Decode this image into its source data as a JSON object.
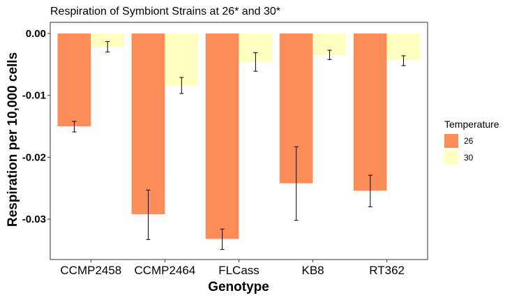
{
  "chart_data": {
    "type": "bar",
    "title": "Respiration of Symbiont Strains at 26* and 30*",
    "xlabel": "Genotype",
    "ylabel": "Respiration per 10,000 cells",
    "categories": [
      "CCMP2458",
      "CCMP2464",
      "FLCass",
      "KB8",
      "RT362"
    ],
    "ylim": [
      -0.036,
      0.0
    ],
    "yticks": [
      "0.00",
      "-0.01",
      "-0.02",
      "-0.03"
    ],
    "ytick_values": [
      0.0,
      -0.01,
      -0.02,
      -0.03
    ],
    "legend": {
      "title": "Temperature",
      "position": "right"
    },
    "grid": false,
    "series": [
      {
        "name": "26",
        "color": "#FC8D59",
        "values": [
          -0.015,
          -0.0292,
          -0.0332,
          -0.0242,
          -0.0254
        ],
        "err_low": [
          -0.0159,
          -0.0333,
          -0.0349,
          -0.0302,
          -0.028
        ],
        "err_high": [
          -0.0142,
          -0.0253,
          -0.0316,
          -0.0183,
          -0.0229
        ]
      },
      {
        "name": "30",
        "color": "#FFFFBF",
        "values": [
          -0.0022,
          -0.0084,
          -0.0046,
          -0.0035,
          -0.0043
        ],
        "err_low": [
          -0.003,
          -0.0097,
          -0.0061,
          -0.0042,
          -0.0052
        ],
        "err_high": [
          -0.0013,
          -0.0071,
          -0.0031,
          -0.0027,
          -0.0036
        ]
      }
    ]
  }
}
